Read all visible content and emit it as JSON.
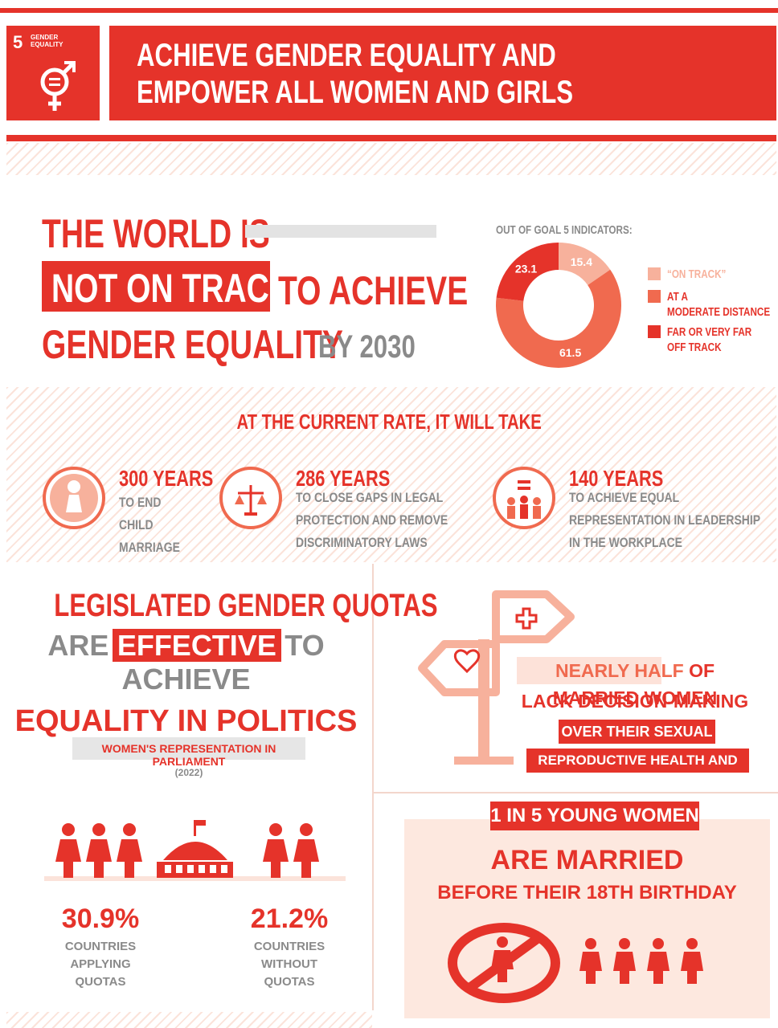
{
  "header": {
    "badge_number": "5",
    "badge_label": [
      "GENDER",
      "EQUALITY"
    ],
    "title": [
      "ACHIEVE GENDER EQUALITY AND",
      "EMPOWER ALL WOMEN AND GIRLS"
    ]
  },
  "headline": {
    "line1": "THE WORLD IS",
    "highlight": "NOT ON TRACK",
    "line2_rest": "TO ACHIEVE",
    "line3": "GENDER EQUALITY",
    "line3_rest": "BY 2030"
  },
  "donut": {
    "title": "OUT OF GOAL 5 INDICATORS:",
    "values": [
      15.4,
      61.5,
      23.1
    ],
    "names": [
      "“ON TRACK”",
      "AT A MODERATE DISTANCE",
      "FAR OR VERY FAR OFF TRACK"
    ],
    "colors": [
      "#f7b19c",
      "#f06a4f",
      "#e5332a"
    ]
  },
  "rate": {
    "heading": "AT THE CURRENT RATE, IT WILL TAKE",
    "items": [
      {
        "years": "300 YEARS",
        "text": "TO END CHILD MARRIAGE"
      },
      {
        "years": "286 YEARS",
        "text": "TO CLOSE GAPS IN LEGAL PROTECTION AND REMOVE DISCRIMINATORY LAWS"
      },
      {
        "years": "140 YEARS",
        "text": "TO ACHIEVE EQUAL REPRESENTATION IN LEADERSHIP IN THE WORKPLACE"
      }
    ]
  },
  "quotas": {
    "line1": "LEGISLATED GENDER QUOTAS",
    "are": "ARE",
    "effective": "EFFECTIVE",
    "to_achieve": "TO ACHIEVE",
    "line3": "EQUALITY IN POLITICS",
    "subtitle": "WOMEN'S REPRESENTATION IN PARLIAMENT",
    "year": "(2022)",
    "stats": [
      {
        "value": "30.9%",
        "label": "COUNTRIES APPLYING QUOTAS"
      },
      {
        "value": "21.2%",
        "label": "COUNTRIES WITHOUT QUOTAS"
      }
    ]
  },
  "decision": {
    "highlight": "NEARLY HALF",
    "line1_rest": "OF MARRIED WOMEN",
    "line2": "LACK DECISION-MAKING POWER",
    "line3": "OVER THEIR SEXUAL AND",
    "line4": "REPRODUCTIVE HEALTH AND RIGHTS"
  },
  "married": {
    "banner": "1 IN 5 YOUNG WOMEN",
    "line1": "ARE MARRIED",
    "line2": "BEFORE THEIR 18TH BIRTHDAY"
  }
}
